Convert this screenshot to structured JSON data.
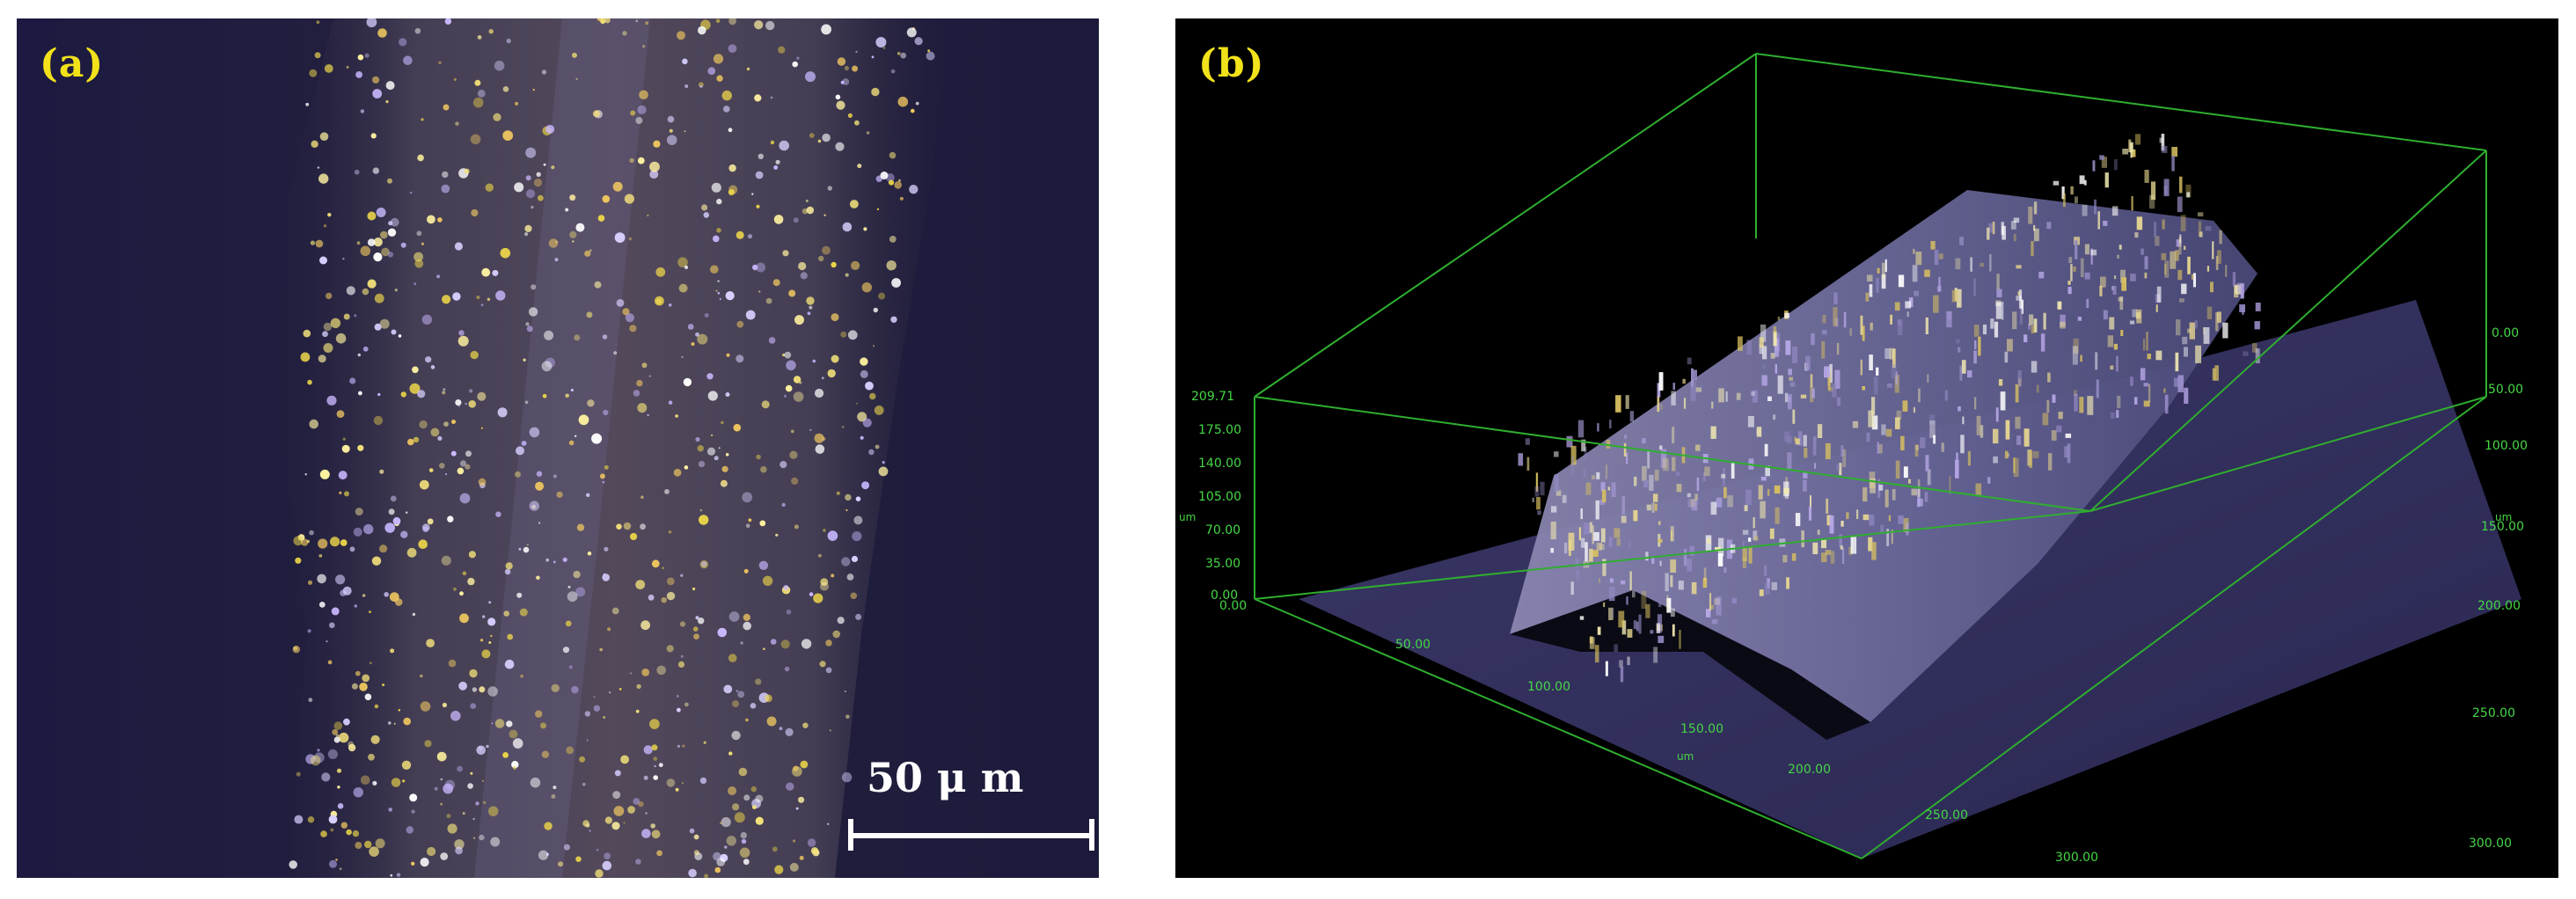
{
  "panel_a": {
    "label": "(a)",
    "scale_bar_label": "50 μ m"
  },
  "panel_b": {
    "label": "(b)",
    "z_axis": {
      "ticks": [
        "209.71",
        "175.00",
        "140.00",
        "105.00",
        "70.00",
        "35.00",
        "0.00"
      ],
      "unit": "um"
    },
    "x_axis": {
      "ticks": [
        "0.00",
        "50.00",
        "100.00",
        "150.00",
        "200.00",
        "250.00",
        "300.00"
      ],
      "unit": "um"
    },
    "y_axis": {
      "ticks": [
        "0.00",
        "50.00",
        "100.00",
        "150.00",
        "200.00",
        "250.00",
        "300.00"
      ],
      "unit": "um"
    }
  },
  "colors": {
    "label_yellow": "#f2e21a",
    "axis_green": "#46d646",
    "background_dark": "#1d1a3c"
  }
}
